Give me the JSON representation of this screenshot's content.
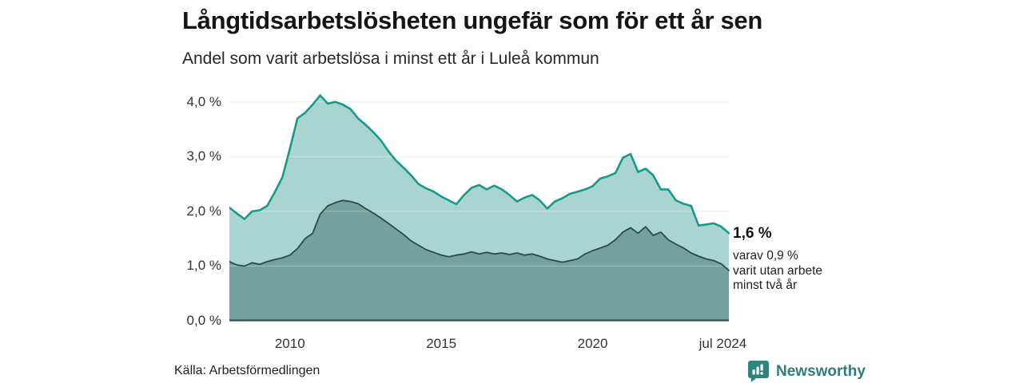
{
  "title": "Långtidsarbetslösheten ungefär som för ett år sen",
  "subtitle": "Andel som varit arbetslösa i minst ett år i Luleå kommun",
  "annotation": {
    "value_label": "1,6 %",
    "detail_lines": [
      "varav 0,9 %",
      "varit utan arbete",
      "minst två år"
    ]
  },
  "source": "Källa: Arbetsförmedlingen",
  "branding": {
    "name": "Newsworthy",
    "color": "#2e7d78",
    "icon": "bar-chart-speech-bubble"
  },
  "colors": {
    "background": "#ffffff",
    "grid": "#e4e4e4",
    "grid_overlay": "rgba(255,255,255,0.35)",
    "axis_line": "#31504c",
    "title_text": "#151515",
    "tick_text": "#333333"
  },
  "chart_data": {
    "type": "area",
    "title": "Långtidsarbetslösheten ungefär som för ett år sen",
    "subtitle": "Andel som varit arbetslösa i minst ett år i Luleå kommun",
    "xlabel": "",
    "ylabel": "",
    "ylim": [
      0,
      4.35
    ],
    "grid": true,
    "legend_position": "none",
    "x_ticks": [
      {
        "value": 2010,
        "label": "2010"
      },
      {
        "value": 2015,
        "label": "2015"
      },
      {
        "value": 2020,
        "label": "2020"
      },
      {
        "value": 2024.3,
        "label": "jul 2024"
      }
    ],
    "y_ticks": [
      {
        "value": 0,
        "label": "0,0 %"
      },
      {
        "value": 1,
        "label": "1,0 %"
      },
      {
        "value": 2,
        "label": "2,0 %"
      },
      {
        "value": 3,
        "label": "3,0 %"
      },
      {
        "value": 4,
        "label": "4,0 %"
      }
    ],
    "x": [
      2008,
      2008.25,
      2008.5,
      2008.75,
      2009,
      2009.25,
      2009.5,
      2009.75,
      2010,
      2010.25,
      2010.5,
      2010.75,
      2011,
      2011.25,
      2011.5,
      2011.75,
      2012,
      2012.25,
      2012.5,
      2012.75,
      2013,
      2013.25,
      2013.5,
      2013.75,
      2014,
      2014.25,
      2014.5,
      2014.75,
      2015,
      2015.25,
      2015.5,
      2015.75,
      2016,
      2016.25,
      2016.5,
      2016.75,
      2017,
      2017.25,
      2017.5,
      2017.75,
      2018,
      2018.25,
      2018.5,
      2018.75,
      2019,
      2019.25,
      2019.5,
      2019.75,
      2020,
      2020.25,
      2020.5,
      2020.75,
      2021,
      2021.25,
      2021.5,
      2021.75,
      2022,
      2022.25,
      2022.5,
      2022.75,
      2023,
      2023.25,
      2023.5,
      2023.75,
      2024,
      2024.25,
      2024.5
    ],
    "series": [
      {
        "name": "Andel arbetslösa minst ett år",
        "latest_value": "1,6 %",
        "line_color": "#18998a",
        "fill_color": "#a8d5cf",
        "line_width": 2.6,
        "values": [
          2.07,
          1.96,
          1.86,
          2.0,
          2.02,
          2.1,
          2.35,
          2.62,
          3.15,
          3.7,
          3.8,
          3.95,
          4.12,
          3.97,
          4.0,
          3.95,
          3.87,
          3.7,
          3.58,
          3.45,
          3.3,
          3.1,
          2.93,
          2.8,
          2.66,
          2.5,
          2.42,
          2.36,
          2.27,
          2.2,
          2.13,
          2.3,
          2.43,
          2.48,
          2.4,
          2.47,
          2.4,
          2.3,
          2.18,
          2.25,
          2.3,
          2.2,
          2.05,
          2.18,
          2.24,
          2.32,
          2.36,
          2.4,
          2.46,
          2.6,
          2.64,
          2.7,
          2.98,
          3.05,
          2.72,
          2.78,
          2.66,
          2.4,
          2.4,
          2.2,
          2.14,
          2.1,
          1.74,
          1.76,
          1.78,
          1.72,
          1.6
        ]
      },
      {
        "name": "Varav utan arbete minst två år",
        "latest_value": "0,9 %",
        "line_color": "#2d4a47",
        "fill_color": "#73a19c",
        "line_width": 1.8,
        "values": [
          1.08,
          1.02,
          1.0,
          1.06,
          1.03,
          1.08,
          1.12,
          1.15,
          1.2,
          1.32,
          1.5,
          1.6,
          1.95,
          2.1,
          2.16,
          2.2,
          2.18,
          2.14,
          2.05,
          1.97,
          1.88,
          1.78,
          1.68,
          1.58,
          1.46,
          1.38,
          1.3,
          1.25,
          1.2,
          1.17,
          1.2,
          1.22,
          1.26,
          1.22,
          1.25,
          1.22,
          1.24,
          1.21,
          1.24,
          1.2,
          1.22,
          1.18,
          1.13,
          1.1,
          1.07,
          1.1,
          1.13,
          1.22,
          1.28,
          1.33,
          1.38,
          1.48,
          1.62,
          1.7,
          1.6,
          1.72,
          1.56,
          1.62,
          1.48,
          1.4,
          1.33,
          1.24,
          1.18,
          1.13,
          1.1,
          1.04,
          0.92
        ]
      }
    ]
  }
}
